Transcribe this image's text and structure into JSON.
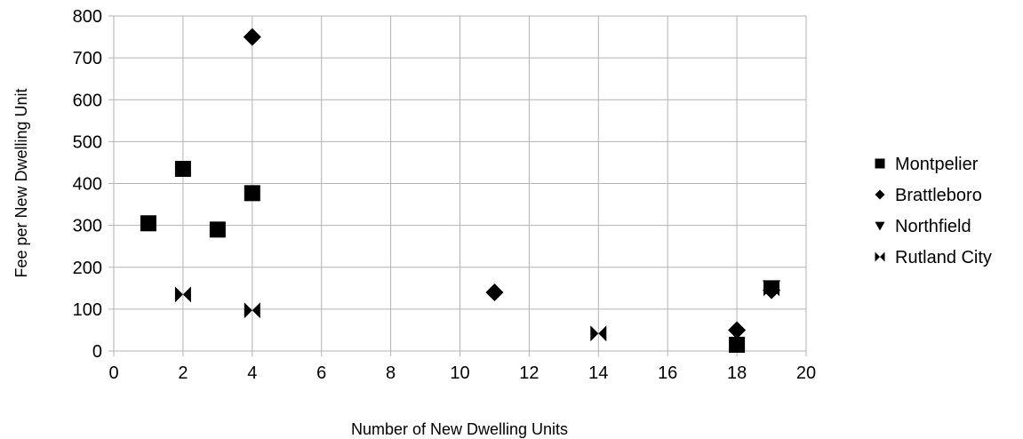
{
  "chart_data": {
    "type": "scatter",
    "xlabel": "Number of New Dwelling Units",
    "ylabel": "Fee per New Dwelling Unit",
    "xlim": [
      0,
      20
    ],
    "ylim": [
      0,
      800
    ],
    "x_ticks": [
      "0",
      "2",
      "4",
      "6",
      "8",
      "10",
      "12",
      "14",
      "16",
      "18",
      "20"
    ],
    "y_ticks": [
      "0",
      "100",
      "200",
      "300",
      "400",
      "500",
      "600",
      "700",
      "800"
    ],
    "grid": true,
    "legend_position": "right",
    "series": [
      {
        "name": "Montpelier",
        "marker": "square",
        "points": [
          [
            1,
            305
          ],
          [
            2,
            435
          ],
          [
            3,
            290
          ],
          [
            4,
            377
          ],
          [
            18,
            15
          ]
        ]
      },
      {
        "name": "Brattleboro",
        "marker": "diamond",
        "points": [
          [
            4,
            750
          ],
          [
            11,
            140
          ],
          [
            18,
            50
          ],
          [
            19,
            145
          ]
        ]
      },
      {
        "name": "Northfield",
        "marker": "triangle-down",
        "points": [
          [
            19,
            152
          ]
        ]
      },
      {
        "name": "Rutland City",
        "marker": "bowtie",
        "points": [
          [
            2,
            135
          ],
          [
            4,
            97
          ],
          [
            14,
            42
          ],
          [
            19,
            150
          ]
        ]
      }
    ]
  }
}
